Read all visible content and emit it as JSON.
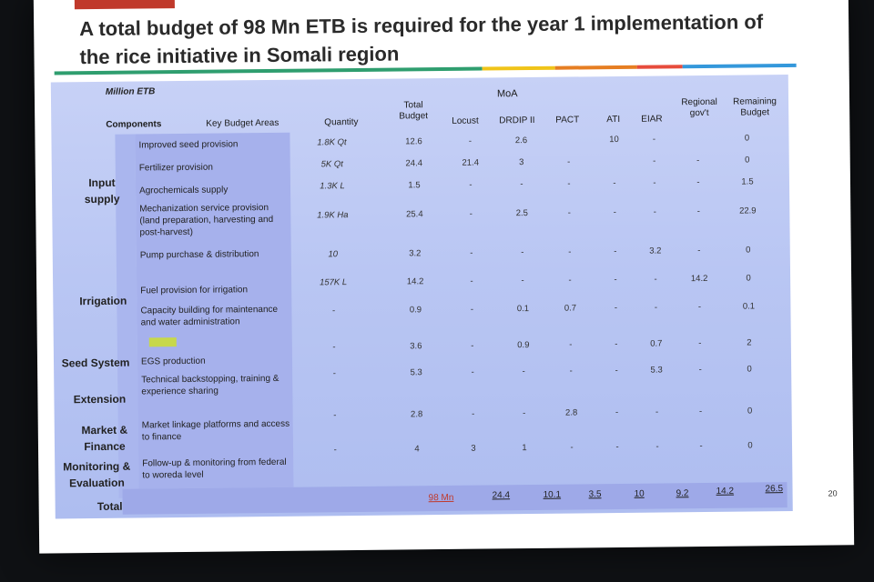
{
  "title": "A total budget of 98 Mn ETB is required for the year 1 implementation of the rice initiative in Somali region",
  "page_number": "20",
  "colors": {
    "accent_red": "#c0392b",
    "table_bg": "#b9c6f3",
    "key_col": "#a6b1ec"
  },
  "headers": {
    "unit": "Million ETB",
    "components": "Components",
    "key_budget_areas": "Key Budget Areas",
    "quantity": "Quantity",
    "total_budget": "Total Budget",
    "moa": "MoA",
    "locust": "Locust",
    "drdip": "DRDIP II",
    "pact": "PACT",
    "ati": "ATI",
    "eiar": "EIAR",
    "regional": "Regional gov't",
    "remaining": "Remaining Budget"
  },
  "components": [
    "Input supply",
    "Irrigation",
    "Seed System",
    "Extension",
    "Market & Finance",
    "Monitoring & Evaluation",
    "Total"
  ],
  "rows": [
    {
      "area": "Improved seed provision",
      "qty": "1.8K Qt",
      "total": "12.6",
      "locust": "-",
      "drdip": "2.6",
      "pact": "",
      "ati": "10",
      "eiar": "-",
      "regional": "",
      "remaining": "0"
    },
    {
      "area": "Fertilizer provision",
      "qty": "5K Qt",
      "total": "24.4",
      "locust": "21.4",
      "drdip": "3",
      "pact": "-",
      "ati": "",
      "eiar": "-",
      "regional": "-",
      "remaining": "0"
    },
    {
      "area": "Agrochemicals supply",
      "qty": "1.3K L",
      "total": "1.5",
      "locust": "-",
      "drdip": "-",
      "pact": "-",
      "ati": "-",
      "eiar": "-",
      "regional": "-",
      "remaining": "1.5"
    },
    {
      "area": "Mechanization service provision (land preparation, harvesting and post-harvest)",
      "qty": "1.9K Ha",
      "total": "25.4",
      "locust": "-",
      "drdip": "2.5",
      "pact": "-",
      "ati": "-",
      "eiar": "-",
      "regional": "-",
      "remaining": "22.9"
    },
    {
      "area": "Pump purchase & distribution",
      "qty": "10",
      "total": "3.2",
      "locust": "-",
      "drdip": "-",
      "pact": "-",
      "ati": "-",
      "eiar": "3.2",
      "regional": "-",
      "remaining": "0"
    },
    {
      "area": "Fuel provision for irrigation",
      "qty": "157K L",
      "total": "14.2",
      "locust": "-",
      "drdip": "-",
      "pact": "-",
      "ati": "-",
      "eiar": "-",
      "regional": "14.2",
      "remaining": "0"
    },
    {
      "area": "Capacity building for maintenance and water administration",
      "qty": "-",
      "total": "0.9",
      "locust": "-",
      "drdip": "0.1",
      "pact": "0.7",
      "ati": "-",
      "eiar": "-",
      "regional": "-",
      "remaining": "0.1"
    },
    {
      "area": "EGS production",
      "qty": "-",
      "total": "3.6",
      "locust": "-",
      "drdip": "0.9",
      "pact": "-",
      "ati": "-",
      "eiar": "0.7",
      "regional": "-",
      "remaining": "2"
    },
    {
      "area": "Technical backstopping, training & experience sharing",
      "qty": "-",
      "total": "5.3",
      "locust": "-",
      "drdip": "-",
      "pact": "-",
      "ati": "-",
      "eiar": "5.3",
      "regional": "-",
      "remaining": "0"
    },
    {
      "area": "Market linkage platforms and access to finance",
      "qty": "-",
      "total": "2.8",
      "locust": "-",
      "drdip": "-",
      "pact": "2.8",
      "ati": "-",
      "eiar": "-",
      "regional": "-",
      "remaining": "0"
    },
    {
      "area": "Follow-up & monitoring from federal to woreda level",
      "qty": "-",
      "total": "4",
      "locust": "3",
      "drdip": "1",
      "pact": "-",
      "ati": "-",
      "eiar": "-",
      "regional": "-",
      "remaining": "0"
    }
  ],
  "totals": {
    "total": "98 Mn",
    "locust": "24.4",
    "drdip": "10.1",
    "pact": "3.5",
    "ati": "10",
    "eiar": "9.2",
    "regional": "14.2",
    "remaining": "26.5"
  }
}
